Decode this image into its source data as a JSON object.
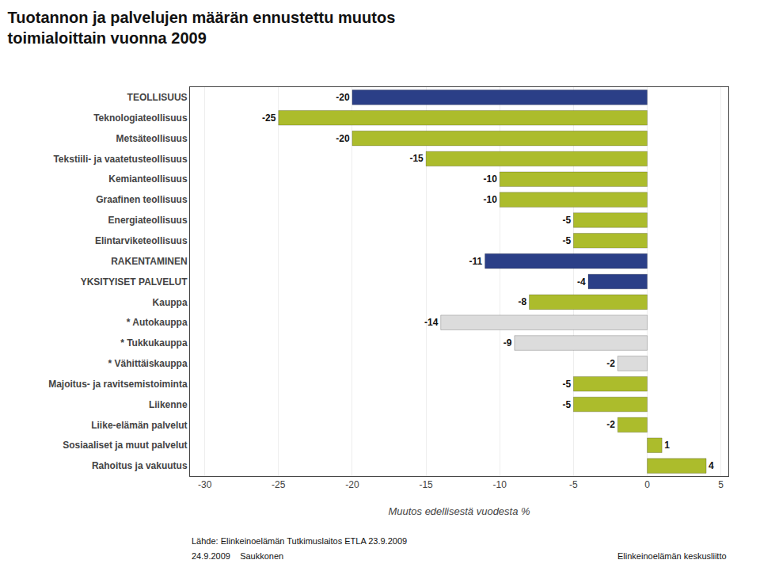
{
  "chart_data": {
    "type": "bar",
    "orientation": "horizontal",
    "title": "Tuotannon ja palvelujen määrän ennustettu muutos",
    "subtitle": "toimialoittain vuonna 2009",
    "xlabel": "Muutos edellisestä vuodesta %",
    "categories": [
      "TEOLLISUUS",
      "Teknologiateollisuus",
      "Metsäteollisuus",
      "Tekstiili- ja vaatetusteollisuus",
      "Kemianteollisuus",
      "Graafinen teollisuus",
      "Energiateollisuus",
      "Elintarviketeollisuus",
      "RAKENTAMINEN",
      "YKSITYISET PALVELUT",
      "Kauppa",
      "* Autokauppa",
      "* Tukkukauppa",
      "* Vähittäiskauppa",
      "Majoitus- ja ravitsemistoiminta",
      "Liikenne",
      "Liike-elämän palvelut",
      "Sosiaaliset ja muut palvelut",
      "Rahoitus ja vakuutus"
    ],
    "values": [
      -20,
      -25,
      -20,
      -15,
      -10,
      -10,
      -5,
      -5,
      -11,
      -4,
      -8,
      -14,
      -9,
      -2,
      -5,
      -5,
      -2,
      1,
      4
    ],
    "colors": [
      "#2B3F87",
      "#ACBC2C",
      "#ACBC2C",
      "#ACBC2C",
      "#ACBC2C",
      "#ACBC2C",
      "#ACBC2C",
      "#ACBC2C",
      "#2B3F87",
      "#2B3F87",
      "#ACBC2C",
      "#DCDCDC",
      "#DCDCDC",
      "#DCDCDC",
      "#ACBC2C",
      "#ACBC2C",
      "#ACBC2C",
      "#ACBC2C",
      "#ACBC2C"
    ],
    "xlim": [
      -31,
      5.5
    ],
    "xticks": [
      -30,
      -25,
      -20,
      -15,
      -10,
      -5,
      0,
      5
    ],
    "grid": true,
    "data_labels": true,
    "annotations": [
      "Lähde: Elinkeinoelämän Tutkimuslaitos ETLA 23.9.2009",
      "24.9.2009    Saukkonen",
      "Elinkeinoelämän keskusliitto"
    ]
  }
}
